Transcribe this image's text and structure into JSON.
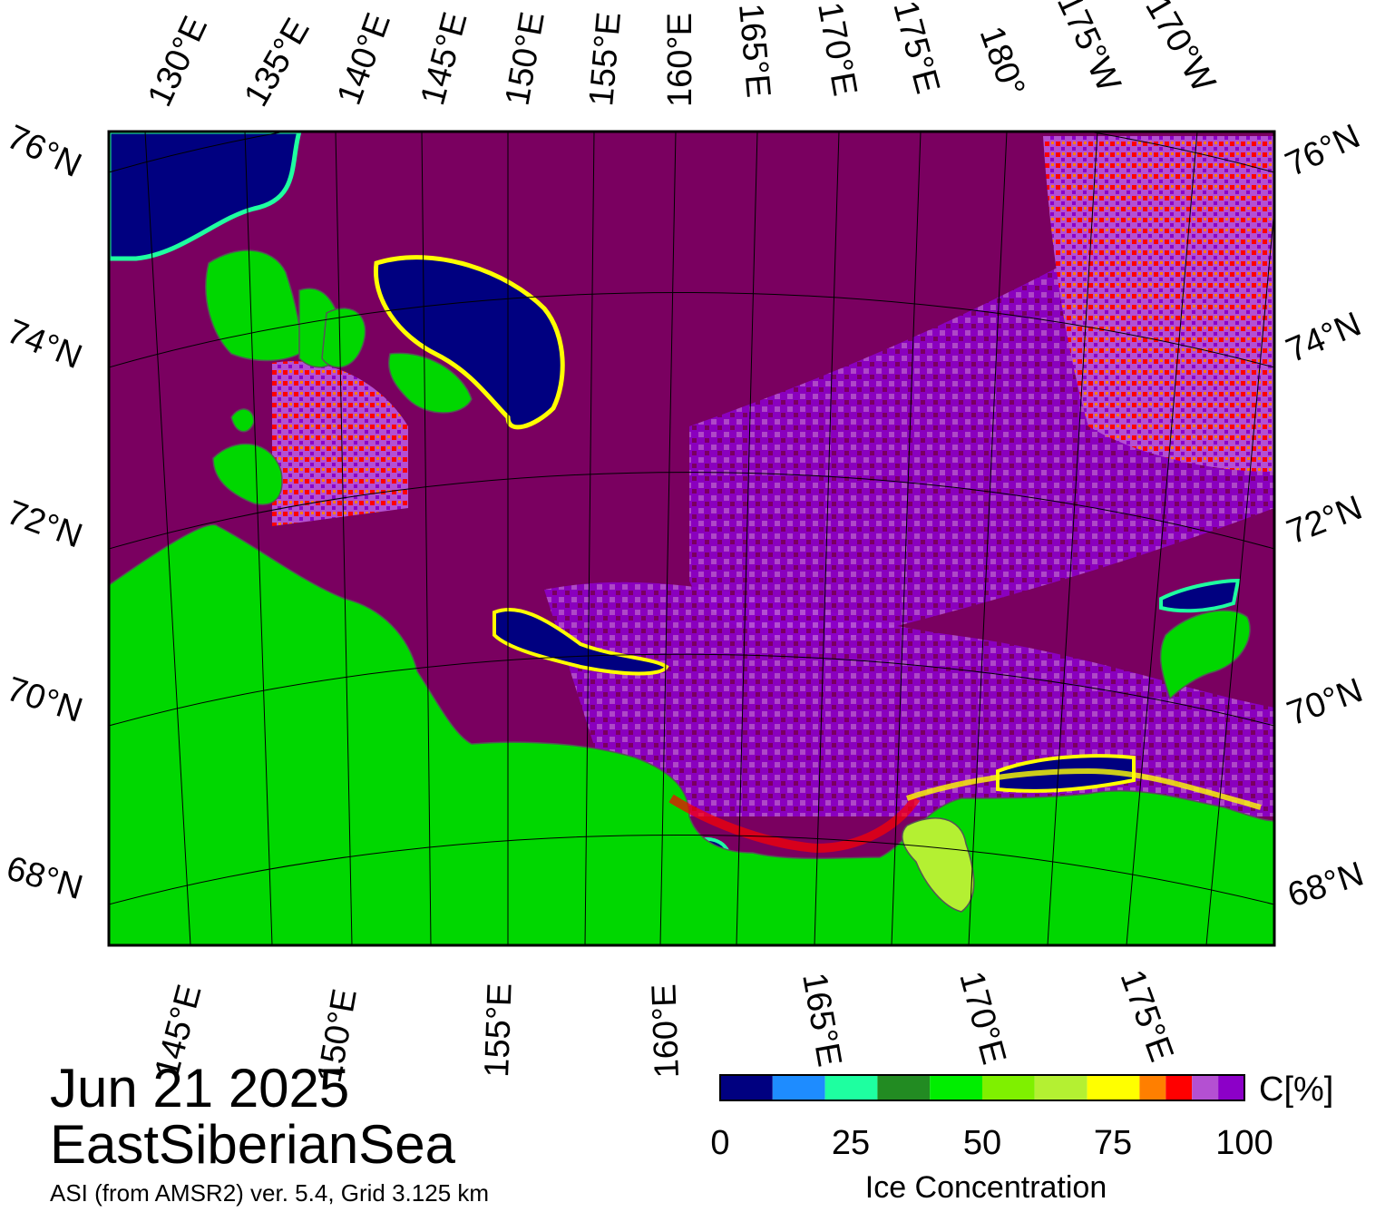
{
  "header": {
    "date": "Jun 21 2025",
    "region": "EastSiberianSea",
    "product": "ASI (from AMSR2) ver. 5.4,  Grid 3.125 km"
  },
  "map": {
    "projection_grid_labels": {
      "top": [
        "130°E",
        "135°E",
        "140°E",
        "145°E",
        "150°E",
        "155°E",
        "160°E",
        "165°E",
        "170°E",
        "175°E",
        "180°",
        "175°W",
        "170°W"
      ],
      "bottom": [
        "145°E",
        "150°E",
        "155°E",
        "160°E",
        "165°E",
        "170°E",
        "175°E"
      ],
      "left": [
        "76°N",
        "74°N",
        "72°N",
        "70°N",
        "68°N"
      ],
      "right": [
        "76°N",
        "74°N",
        "72°N",
        "70°N",
        "68°N"
      ]
    },
    "colors": {
      "land": "#00d700",
      "high_ice": "#7a0060",
      "very_high_ice": "#8c00c8",
      "mid_ice": "#b450d2",
      "open_water": "#000080"
    }
  },
  "colorbar": {
    "title": "Ice Concentration",
    "unit": "C[%]",
    "ticks": [
      "0",
      "25",
      "50",
      "75",
      "100"
    ],
    "bins": [
      {
        "range": "0-10",
        "color": "#000080"
      },
      {
        "range": "10-20",
        "color": "#1e8cff"
      },
      {
        "range": "20-30",
        "color": "#1effa0"
      },
      {
        "range": "30-40",
        "color": "#228b22"
      },
      {
        "range": "40-50",
        "color": "#00ee00"
      },
      {
        "range": "50-60",
        "color": "#7ff000"
      },
      {
        "range": "60-70",
        "color": "#b4f032"
      },
      {
        "range": "70-80",
        "color": "#ffff00"
      },
      {
        "range": "80-85",
        "color": "#ff7f00"
      },
      {
        "range": "85-90",
        "color": "#ff0000"
      },
      {
        "range": "90-95",
        "color": "#b450d2"
      },
      {
        "range": "95-100",
        "color": "#8c00c8"
      }
    ]
  }
}
